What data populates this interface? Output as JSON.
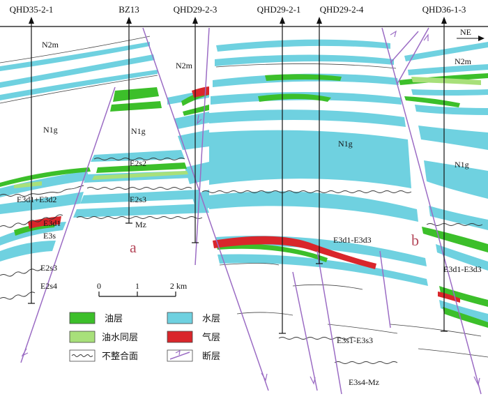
{
  "wells": [
    {
      "id": "QHD35-2-1"
    },
    {
      "id": "BZ13"
    },
    {
      "id": "QHD29-2-3"
    },
    {
      "id": "QHD29-2-1"
    },
    {
      "id": "QHD29-2-4"
    },
    {
      "id": "QHD36-1-3"
    }
  ],
  "direction": "NE",
  "faults": {
    "a": "a",
    "b": "b"
  },
  "units": {
    "n2m_left": "N2m",
    "n2m_mid": "N2m",
    "n2m_right": "N2m",
    "n1g_left": "N1g",
    "n1g_bz": "N1g",
    "n1g_center": "N1g",
    "n1g_right": "N1g",
    "e3d_left": "E3d1+E3d2",
    "e2s2_bz": "E2s2",
    "e2s3_bz": "E2s3",
    "mz_bz": "Mz",
    "e3d_left2": "E3d1",
    "e3s_left": "E3s",
    "e2s3_left": "E2s3",
    "e2s4_left": "E2s4",
    "e3d_center": "E3d1-E3d3",
    "e3d_right": "E3d1-E3d3",
    "e3s_center": "E3s1-E3s3",
    "e3s4_mz": "E3s4-Mz"
  },
  "scale": {
    "ticks": [
      "0",
      "1",
      "2 km"
    ]
  },
  "legend": {
    "oil": {
      "label": "油层",
      "color": "#3cbf2a"
    },
    "water": {
      "label": "水层",
      "color": "#6fd1e0"
    },
    "oilwater": {
      "label": "油水同层",
      "color": "#a8e07a"
    },
    "gas": {
      "label": "气层",
      "color": "#d9262b"
    },
    "unconformity": {
      "label": "不整合面"
    },
    "fault": {
      "label": "断层",
      "color": "#9b6cc4"
    }
  }
}
